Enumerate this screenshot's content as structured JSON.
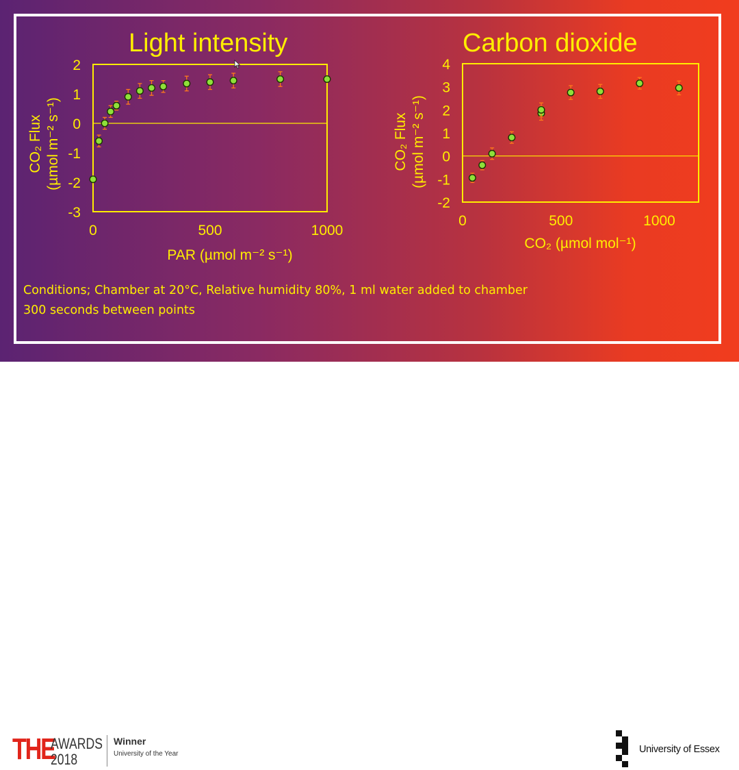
{
  "chart_data": [
    {
      "type": "scatter",
      "title": "Light intensity",
      "xlabel": "PAR (µmol m⁻² s⁻¹)",
      "ylabel_line1": "CO₂ Flux",
      "ylabel_line2": "(µmol m⁻² s⁻¹)",
      "xlim": [
        0,
        1000
      ],
      "ylim": [
        -3,
        2
      ],
      "xticks": [
        "0",
        "500",
        "1000"
      ],
      "yticks": [
        "2",
        "1",
        "0",
        "-1",
        "-2",
        "-3"
      ],
      "zero_line": true,
      "error_bars": true,
      "x": [
        0,
        25,
        50,
        75,
        100,
        150,
        200,
        250,
        300,
        400,
        500,
        600,
        800,
        1000
      ],
      "y": [
        -1.9,
        -0.6,
        0.0,
        0.4,
        0.6,
        0.9,
        1.1,
        1.2,
        1.25,
        1.35,
        1.4,
        1.45,
        1.5,
        1.5
      ],
      "error": [
        0.0,
        0.2,
        0.2,
        0.2,
        0.15,
        0.25,
        0.25,
        0.25,
        0.2,
        0.25,
        0.25,
        0.25,
        0.25,
        0.0
      ]
    },
    {
      "type": "scatter",
      "title": "Carbon dioxide",
      "xlabel": "CO₂ (µmol mol⁻¹)",
      "ylabel_line1": "CO₂ Flux",
      "ylabel_line2": "(µmol m⁻² s⁻¹)",
      "xlim": [
        0,
        1200
      ],
      "ylim": [
        -2,
        4
      ],
      "xticks": [
        "0",
        "500",
        "1000"
      ],
      "yticks": [
        "4",
        "3",
        "2",
        "1",
        "0",
        "-1",
        "-2"
      ],
      "zero_line": true,
      "error_bars": true,
      "x": [
        50,
        100,
        150,
        250,
        400,
        400,
        550,
        700,
        900,
        1100
      ],
      "y": [
        -0.95,
        -0.4,
        0.1,
        0.8,
        1.85,
        2.0,
        2.75,
        2.8,
        3.15,
        2.95
      ],
      "error": [
        0.2,
        0.2,
        0.25,
        0.25,
        0.3,
        0.3,
        0.3,
        0.3,
        0.25,
        0.3
      ]
    }
  ],
  "conditions": {
    "line1": "Conditions; Chamber at 20°C, Relative humidity 80%, 1 ml water added to chamber",
    "line2": "300 seconds between points"
  },
  "footer": {
    "award_the": "THE",
    "award_awards": "AWARDS",
    "award_year": "2018",
    "award_winner": "Winner",
    "award_category": "University of the Year",
    "university": "University of Essex"
  },
  "colors": {
    "accent_yellow": "#ffee00",
    "point_green": "#8fe03a",
    "error_bar": "#ff7a1a",
    "brand_red": "#e1251b"
  }
}
